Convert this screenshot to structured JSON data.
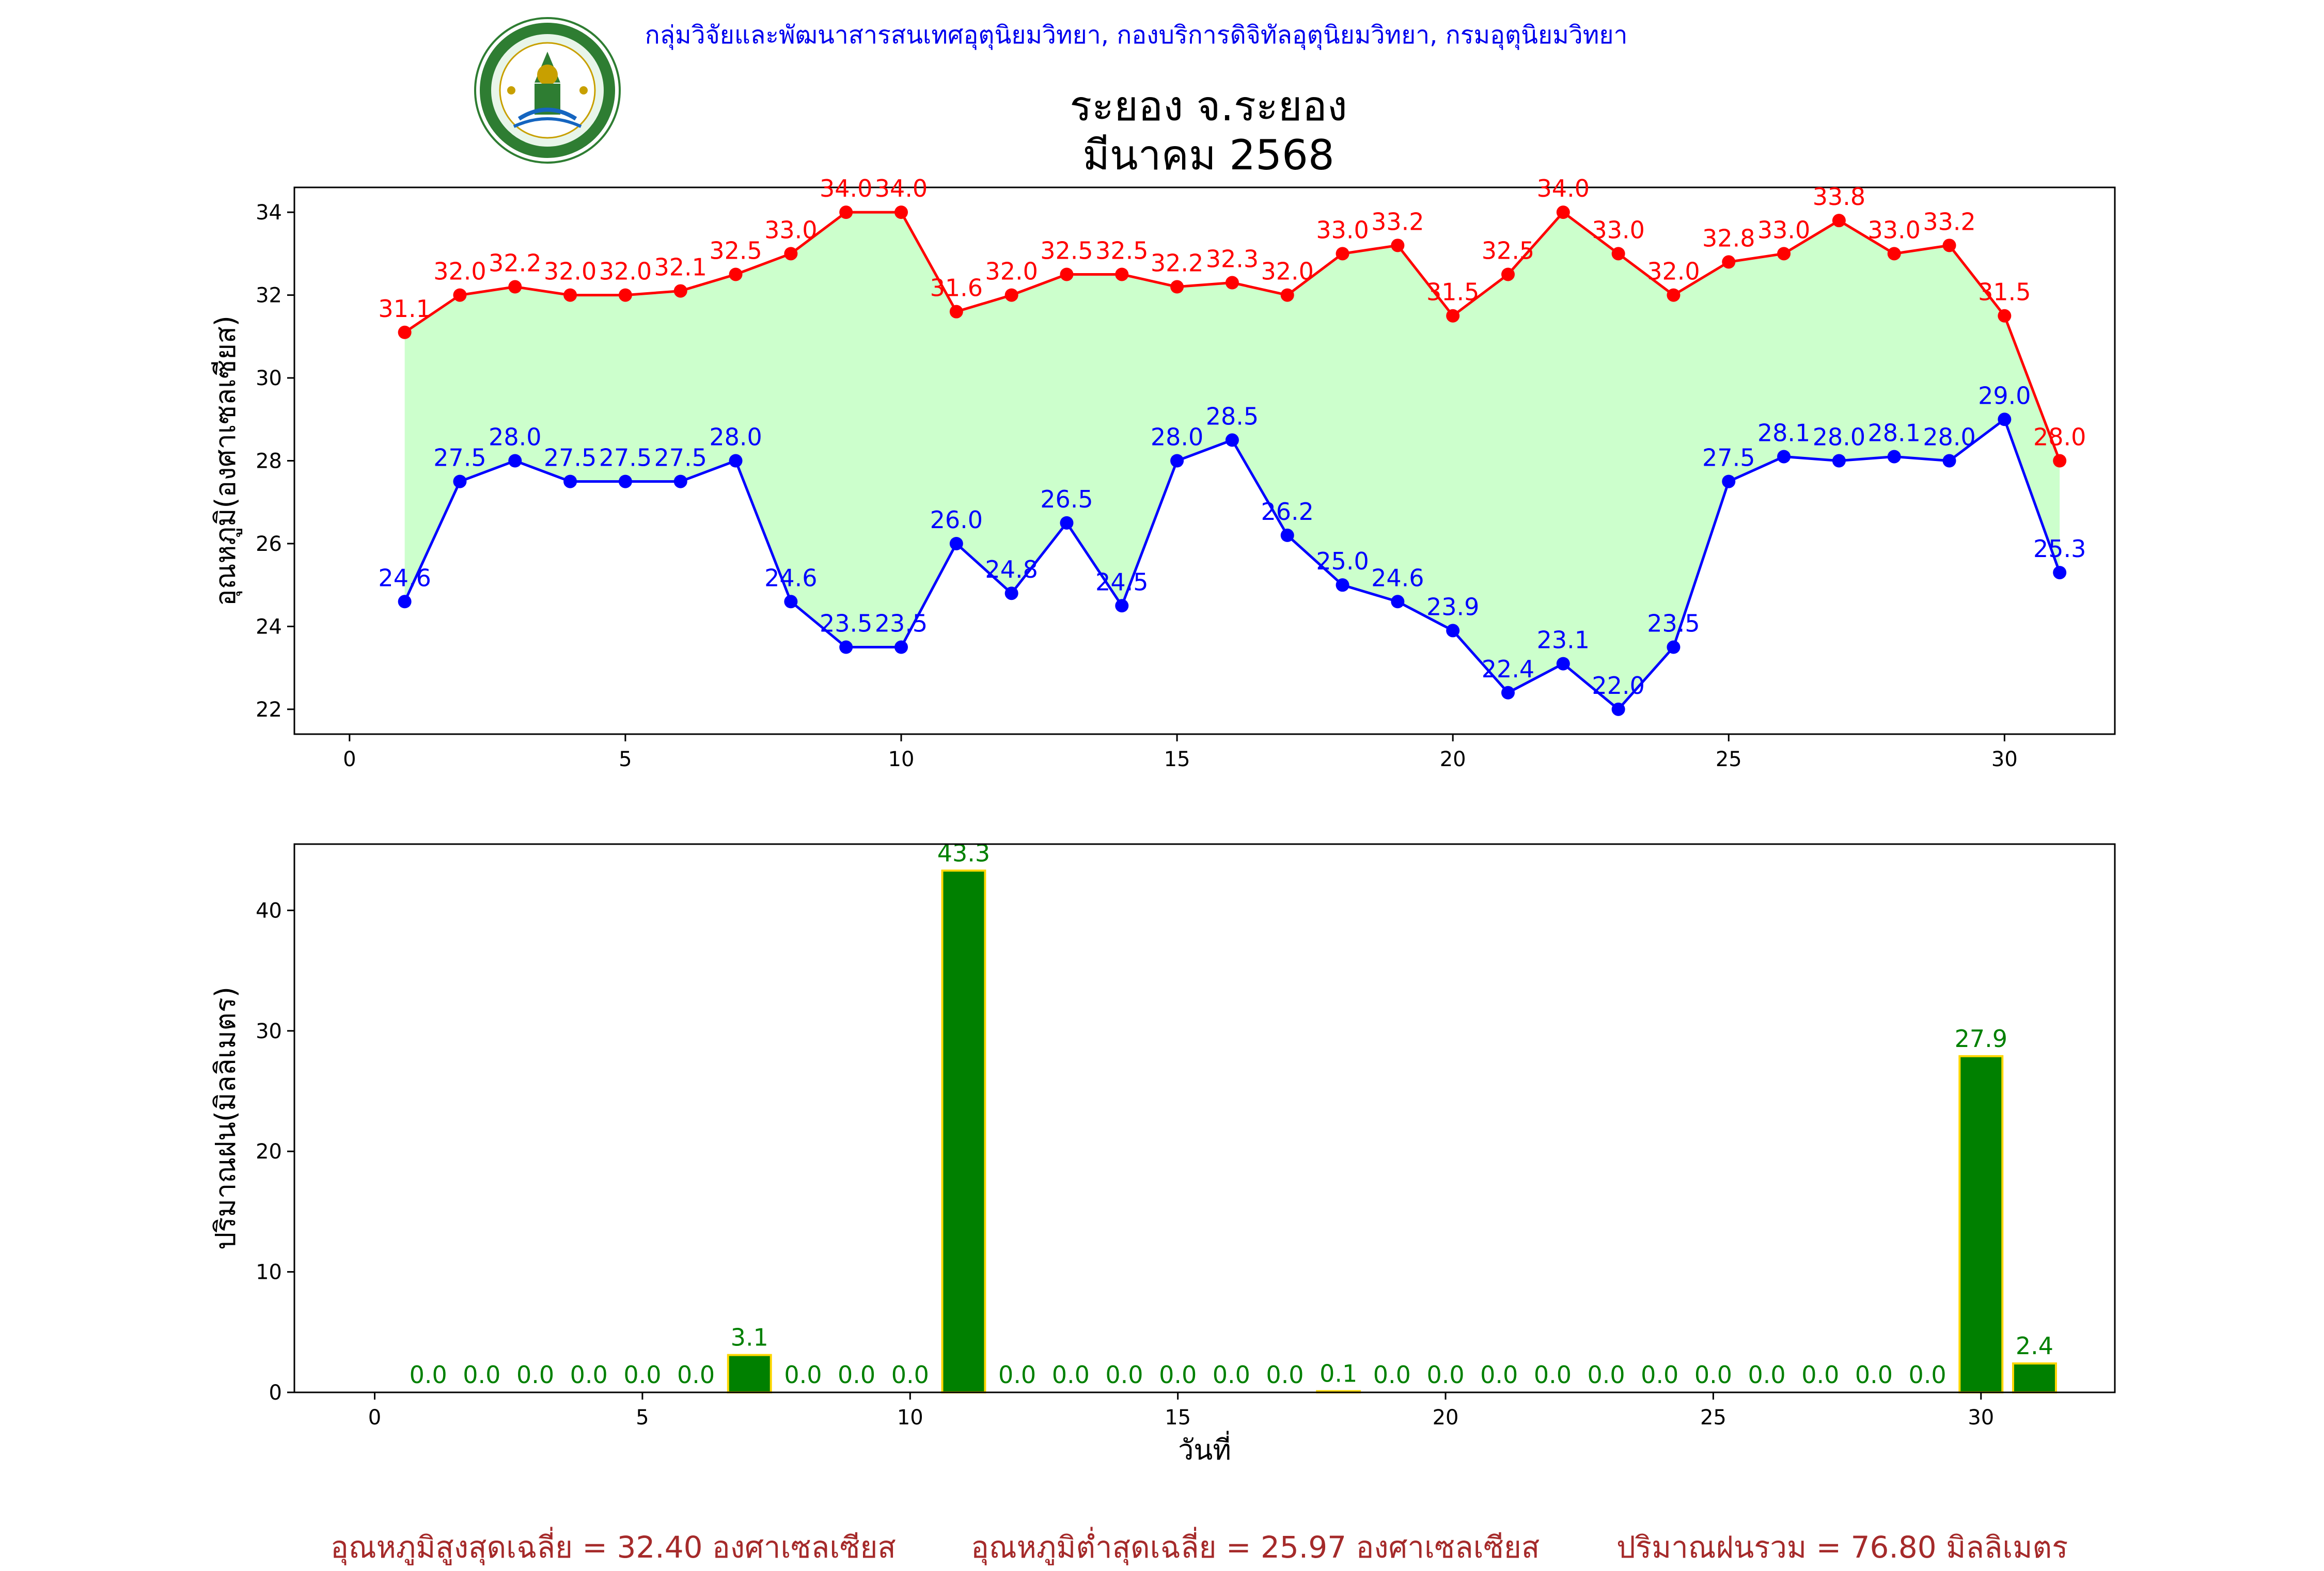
{
  "header": {
    "org_line": "กลุ่มวิจัยและพัฒนาสารสนเทศอุตุนิยมวิทยา, กองบริการดิจิทัลอุตุนิยมวิทยา, กรมอุตุนิยมวิทยา",
    "station": "ระยอง จ.ระยอง",
    "month": "มีนาคม 2568",
    "logo_text_top": "กรมอุตุนิยมวิทยา",
    "logo_text_bottom": "METEOROLOGICAL DEPARTMENT"
  },
  "footer": {
    "avg_max": "อุณหภูมิสูงสุดเฉลี่ย = 32.40 องศาเซลเซียส",
    "avg_min": "อุณหภูมิต่ำสุดเฉลี่ย = 25.97 องศาเซลเซียส",
    "total_rain": "ปริมาณฝนรวม = 76.80 มิลลิเมตร"
  },
  "colors": {
    "max_line": "#ff0000",
    "min_line": "#0000ff",
    "fill": "#ccffcc",
    "bar": "#008000",
    "bar_edge": "#ffd700",
    "bar_label": "#008000",
    "header": "#0000ee",
    "footer": "#a52a2a"
  },
  "chart_data": [
    {
      "type": "line",
      "ylabel": "อุณหภูมิ(องศาเซลเซียส)",
      "xlabel": "",
      "xlim": [
        -1,
        32
      ],
      "ylim": [
        21.4,
        34.6
      ],
      "xticks": [
        0,
        5,
        10,
        15,
        20,
        25,
        30
      ],
      "yticks": [
        22,
        24,
        26,
        28,
        30,
        32,
        34
      ],
      "x": [
        1,
        2,
        3,
        4,
        5,
        6,
        7,
        8,
        9,
        10,
        11,
        12,
        13,
        14,
        15,
        16,
        17,
        18,
        19,
        20,
        21,
        22,
        23,
        24,
        25,
        26,
        27,
        28,
        29,
        30,
        31
      ],
      "series": [
        {
          "values": [
            31.1,
            32.0,
            32.2,
            32.0,
            32.0,
            32.1,
            32.5,
            33.0,
            34.0,
            34.0,
            31.6,
            32.0,
            32.5,
            32.5,
            32.2,
            32.3,
            32.0,
            33.0,
            33.2,
            31.5,
            32.5,
            34.0,
            33.0,
            32.0,
            32.8,
            33.0,
            33.8,
            33.0,
            33.2,
            31.5,
            28.0
          ]
        },
        {
          "values": [
            24.6,
            27.5,
            28.0,
            27.5,
            27.5,
            27.5,
            28.0,
            24.6,
            23.5,
            23.5,
            26.0,
            24.8,
            26.5,
            24.5,
            28.0,
            28.5,
            26.2,
            25.0,
            24.6,
            23.9,
            22.4,
            23.1,
            22.0,
            23.5,
            27.5,
            28.1,
            28.0,
            28.1,
            28.0,
            29.0,
            25.3
          ]
        }
      ]
    },
    {
      "type": "bar",
      "ylabel": "ปริมาณฝน(มิลลิเมตร)",
      "xlabel": "วันที่",
      "xlim": [
        -1.5,
        32.5
      ],
      "ylim": [
        0,
        45.5
      ],
      "xticks": [
        0,
        5,
        10,
        15,
        20,
        25,
        30
      ],
      "yticks": [
        0,
        10,
        20,
        30,
        40
      ],
      "x": [
        1,
        2,
        3,
        4,
        5,
        6,
        7,
        8,
        9,
        10,
        11,
        12,
        13,
        14,
        15,
        16,
        17,
        18,
        19,
        20,
        21,
        22,
        23,
        24,
        25,
        26,
        27,
        28,
        29,
        30,
        31
      ],
      "values": [
        0.0,
        0.0,
        0.0,
        0.0,
        0.0,
        0.0,
        3.1,
        0.0,
        0.0,
        0.0,
        43.3,
        0.0,
        0.0,
        0.0,
        0.0,
        0.0,
        0.0,
        0.1,
        0.0,
        0.0,
        0.0,
        0.0,
        0.0,
        0.0,
        0.0,
        0.0,
        0.0,
        0.0,
        0.0,
        27.9,
        2.4
      ]
    }
  ]
}
